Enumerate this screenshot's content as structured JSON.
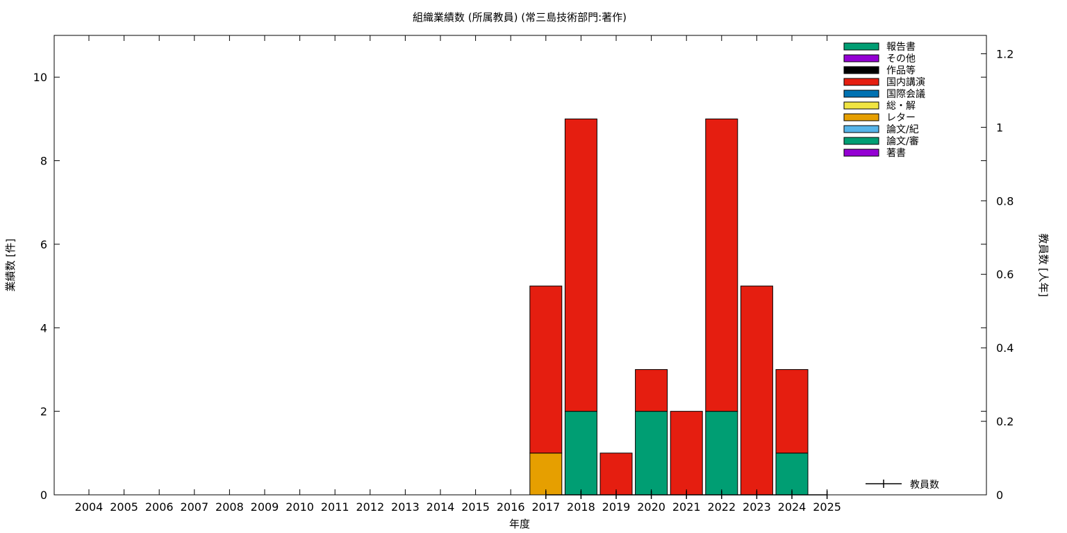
{
  "chart_data": {
    "type": "bar",
    "stacked": true,
    "title": "組織業績数 (所属教員) (常三島技術部門:著作)",
    "xlabel": "年度",
    "ylabel": "業績数 [件]",
    "y2label": "教員数 [人年]",
    "categories": [
      "2004",
      "2005",
      "2006",
      "2007",
      "2008",
      "2009",
      "2010",
      "2011",
      "2012",
      "2013",
      "2014",
      "2015",
      "2016",
      "2017",
      "2018",
      "2019",
      "2020",
      "2021",
      "2022",
      "2023",
      "2024",
      "2025"
    ],
    "ylim": [
      0,
      11
    ],
    "yticks": [
      0,
      2,
      4,
      6,
      8,
      10
    ],
    "y2lim": [
      0,
      1.25
    ],
    "y2ticks": [
      "0",
      "0.2",
      "0.4",
      "0.6",
      "0.8",
      "1",
      "1.2"
    ],
    "y2tick_values": [
      0,
      0.2,
      0.4,
      0.6,
      0.8,
      1,
      1.2
    ],
    "grid": false,
    "legend_position": "top-right",
    "series": [
      {
        "name": "著書",
        "color": "#9400d3",
        "values": [
          0,
          0,
          0,
          0,
          0,
          0,
          0,
          0,
          0,
          0,
          0,
          0,
          0,
          0,
          0,
          0,
          0,
          0,
          0,
          0,
          0,
          0
        ]
      },
      {
        "name": "論文/審",
        "color": "#009e73",
        "values": [
          0,
          0,
          0,
          0,
          0,
          0,
          0,
          0,
          0,
          0,
          0,
          0,
          0,
          0,
          2,
          0,
          2,
          0,
          2,
          0,
          1,
          0
        ]
      },
      {
        "name": "論文/紀",
        "color": "#56b4e9",
        "values": [
          0,
          0,
          0,
          0,
          0,
          0,
          0,
          0,
          0,
          0,
          0,
          0,
          0,
          0,
          0,
          0,
          0,
          0,
          0,
          0,
          0,
          0
        ]
      },
      {
        "name": "レター",
        "color": "#e69f00",
        "values": [
          0,
          0,
          0,
          0,
          0,
          0,
          0,
          0,
          0,
          0,
          0,
          0,
          0,
          1,
          0,
          0,
          0,
          0,
          0,
          0,
          0,
          0
        ]
      },
      {
        "name": "総・解",
        "color": "#f0e442",
        "values": [
          0,
          0,
          0,
          0,
          0,
          0,
          0,
          0,
          0,
          0,
          0,
          0,
          0,
          0,
          0,
          0,
          0,
          0,
          0,
          0,
          0,
          0
        ]
      },
      {
        "name": "国際会議",
        "color": "#0072b2",
        "values": [
          0,
          0,
          0,
          0,
          0,
          0,
          0,
          0,
          0,
          0,
          0,
          0,
          0,
          0,
          0,
          0,
          0,
          0,
          0,
          0,
          0,
          0
        ]
      },
      {
        "name": "国内講演",
        "color": "#e51e10",
        "values": [
          0,
          0,
          0,
          0,
          0,
          0,
          0,
          0,
          0,
          0,
          0,
          0,
          0,
          4,
          7,
          1,
          1,
          2,
          7,
          5,
          2,
          0
        ]
      },
      {
        "name": "作品等",
        "color": "#000000",
        "values": [
          0,
          0,
          0,
          0,
          0,
          0,
          0,
          0,
          0,
          0,
          0,
          0,
          0,
          0,
          0,
          0,
          0,
          0,
          0,
          0,
          0,
          0
        ]
      },
      {
        "name": "その他",
        "color": "#9400d3",
        "values": [
          0,
          0,
          0,
          0,
          0,
          0,
          0,
          0,
          0,
          0,
          0,
          0,
          0,
          0,
          0,
          0,
          0,
          0,
          0,
          0,
          0,
          0
        ]
      },
      {
        "name": "報告書",
        "color": "#009e73",
        "values": [
          0,
          0,
          0,
          0,
          0,
          0,
          0,
          0,
          0,
          0,
          0,
          0,
          0,
          0,
          0,
          0,
          0,
          0,
          0,
          0,
          0,
          0
        ]
      }
    ],
    "line_series": {
      "name": "教員数",
      "axis": "y2",
      "color": "#000000",
      "categories": [
        "2017",
        "2018",
        "2019",
        "2020",
        "2021",
        "2022",
        "2023",
        "2024",
        "2025"
      ],
      "values": [
        0,
        0,
        0,
        0,
        0,
        0,
        0,
        0,
        0
      ]
    },
    "legend_order": [
      "報告書",
      "その他",
      "作品等",
      "国内講演",
      "国際会議",
      "総・解",
      "レター",
      "論文/紀",
      "論文/審",
      "著書"
    ]
  }
}
